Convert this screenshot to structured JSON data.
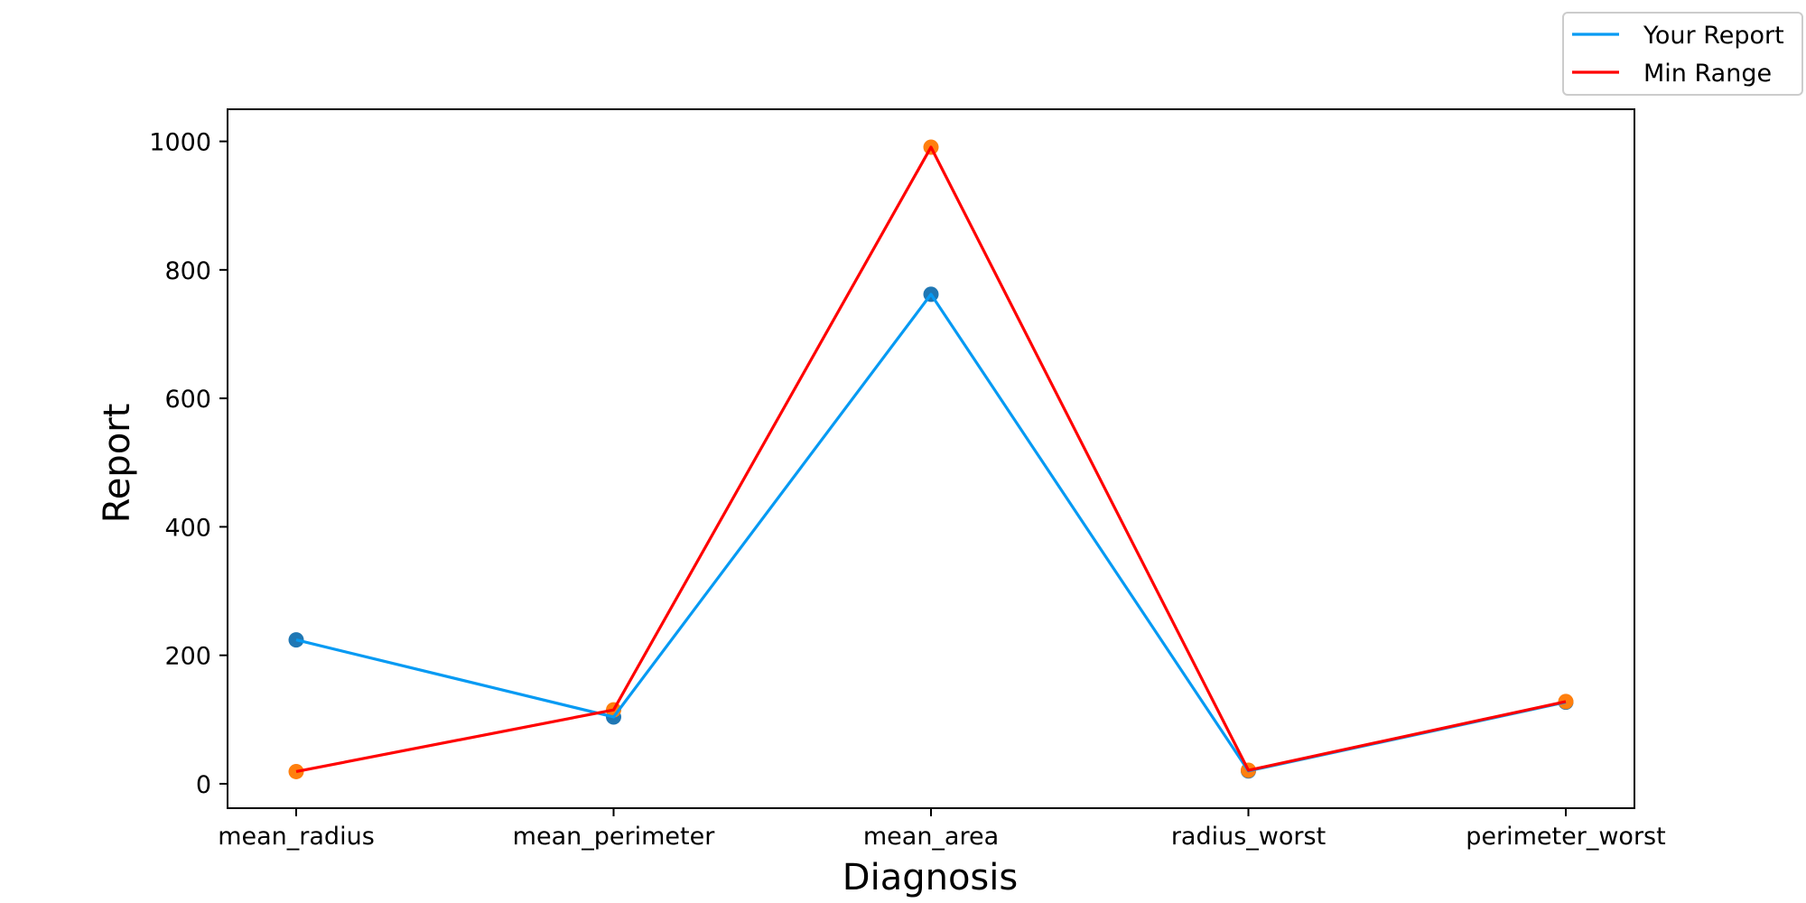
{
  "chart_data": {
    "type": "line",
    "xlabel": "Diagnosis",
    "ylabel": "Report",
    "categories": [
      "mean_radius",
      "mean_perimeter",
      "mean_area",
      "radius_worst",
      "perimeter_worst"
    ],
    "ylim": [
      -38,
      1050
    ],
    "yticks": [
      0,
      200,
      400,
      600,
      800,
      1000
    ],
    "grid": false,
    "legend_position": "top-right",
    "series": [
      {
        "name": "Your Report",
        "values": [
          224,
          104,
          762,
          20,
          127
        ],
        "line_color": "#069AF3",
        "marker_color": "#1f77b4"
      },
      {
        "name": "Min Range",
        "values": [
          19,
          115,
          991,
          21,
          128
        ],
        "line_color": "#FF0000",
        "marker_color": "#ff7f0e"
      }
    ]
  }
}
